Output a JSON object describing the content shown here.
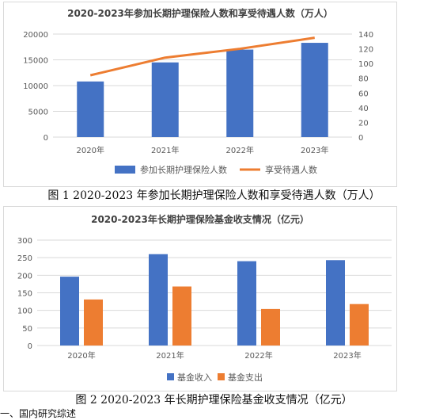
{
  "chart_data": [
    {
      "type": "bar",
      "title": "2020-2023年参加长期护理保险人数和享受待遇人数（万人）",
      "categories": [
        "2020年",
        "2021年",
        "2022年",
        "2023年"
      ],
      "series": [
        {
          "name": "参加长期护理保险人数",
          "kind": "bar",
          "axis": "left",
          "values": [
            10800,
            14500,
            16990,
            18300
          ],
          "color": "#4472C4"
        },
        {
          "name": "享受待遇人数",
          "kind": "line",
          "axis": "right",
          "values": [
            84,
            108,
            120,
            135
          ],
          "color": "#ED7D31"
        }
      ],
      "y_left": {
        "min": 0,
        "max": 20000,
        "ticks": [
          "0",
          "5000",
          "10000",
          "15000",
          "20000"
        ]
      },
      "y_right": {
        "min": 0,
        "max": 140,
        "ticks": [
          "0",
          "20",
          "40",
          "60",
          "80",
          "100",
          "120",
          "140"
        ]
      },
      "grid": true,
      "legend": "bottom"
    },
    {
      "type": "bar",
      "title": "2020-2023年长期护理保险基金收支情况（亿元）",
      "categories": [
        "2020年",
        "2021年",
        "2022年",
        "2023年"
      ],
      "series": [
        {
          "name": "基金收入",
          "values": [
            196,
            260,
            240,
            243
          ],
          "color": "#4472C4"
        },
        {
          "name": "基金支出",
          "values": [
            131,
            168,
            104,
            118
          ],
          "color": "#ED7D31"
        }
      ],
      "y": {
        "min": 0,
        "max": 300,
        "ticks": [
          "0",
          "50",
          "100",
          "150",
          "200",
          "250",
          "300"
        ]
      },
      "grid": true,
      "legend": "bottom"
    }
  ],
  "captions": {
    "figure1": "图 1 2020-2023 年参加长期护理保险人数和享受待遇人数（万人）",
    "figure2": "图 2 2020-2023 年长期护理保险基金收支情况（亿元）"
  },
  "tail_text": "一、国内研究综述"
}
